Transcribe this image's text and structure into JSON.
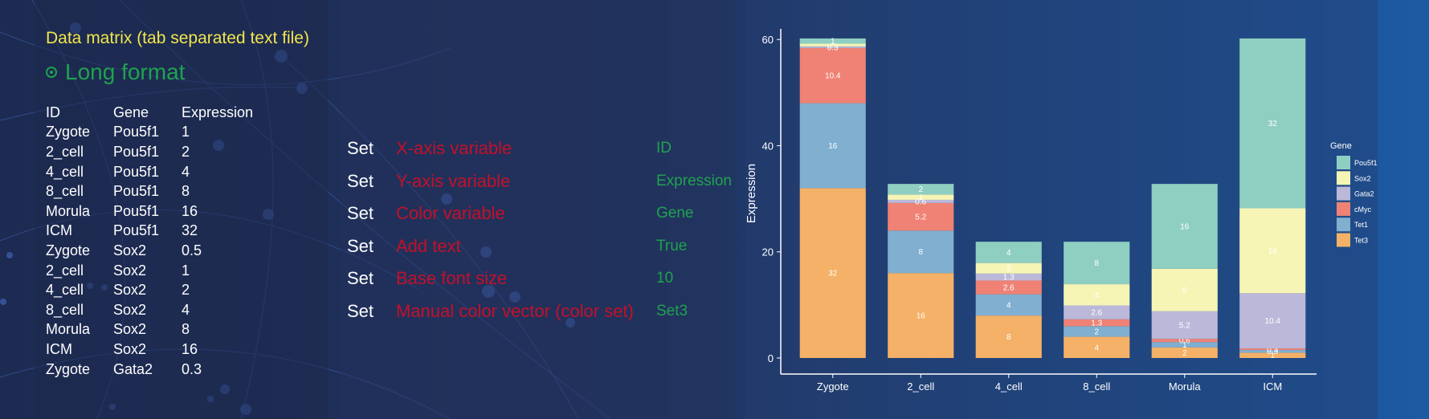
{
  "panel": {
    "title": "Data matrix (tab separated text file)",
    "format_option": "Long format",
    "table": {
      "headers": [
        "ID",
        "Gene",
        "Expression"
      ],
      "rows": [
        [
          "Zygote",
          "Pou5f1",
          "1"
        ],
        [
          "2_cell",
          "Pou5f1",
          "2"
        ],
        [
          "4_cell",
          "Pou5f1",
          "4"
        ],
        [
          "8_cell",
          "Pou5f1",
          "8"
        ],
        [
          "Morula",
          "Pou5f1",
          "16"
        ],
        [
          "ICM",
          "Pou5f1",
          "32"
        ],
        [
          "Zygote",
          "Sox2",
          "0.5"
        ],
        [
          "2_cell",
          "Sox2",
          "1"
        ],
        [
          "4_cell",
          "Sox2",
          "2"
        ],
        [
          "8_cell",
          "Sox2",
          "4"
        ],
        [
          "Morula",
          "Sox2",
          "8"
        ],
        [
          "ICM",
          "Sox2",
          "16"
        ],
        [
          "Zygote",
          "Gata2",
          "0.3"
        ]
      ]
    }
  },
  "settings": [
    {
      "keyword": "Set",
      "name": "X-axis variable",
      "value": "ID"
    },
    {
      "keyword": "Set",
      "name": "Y-axis variable",
      "value": "Expression"
    },
    {
      "keyword": "Set",
      "name": "Color variable",
      "value": "Gene"
    },
    {
      "keyword": "Set",
      "name": "Add text",
      "value": "True"
    },
    {
      "keyword": "Set",
      "name": "Base font size",
      "value": "10"
    },
    {
      "keyword": "Set",
      "name": "Manual color vector (color set)",
      "value": "Set3"
    }
  ],
  "chart_data": {
    "type": "bar",
    "stacked": true,
    "title": "",
    "xlabel": "",
    "ylabel": "Expression",
    "ylim": [
      0,
      62
    ],
    "yticks": [
      0,
      20,
      40,
      60
    ],
    "categories": [
      "Zygote",
      "2_cell",
      "4_cell",
      "8_cell",
      "Morula",
      "ICM"
    ],
    "legend_title": "Gene",
    "legend_position": "right",
    "series": [
      {
        "name": "Tet3",
        "color": "#f4b167",
        "values": [
          32,
          16,
          8,
          4,
          2,
          1
        ]
      },
      {
        "name": "Tet1",
        "color": "#80afd0",
        "values": [
          16,
          8,
          4,
          2,
          1,
          0.5
        ]
      },
      {
        "name": "cMyc",
        "color": "#ef8274",
        "values": [
          10.4,
          5.2,
          2.6,
          1.3,
          0.6,
          0.3
        ]
      },
      {
        "name": "Gata2",
        "color": "#bbb8d9",
        "values": [
          0.3,
          0.6,
          1.3,
          2.6,
          5.2,
          10.4
        ]
      },
      {
        "name": "Sox2",
        "color": "#f7f5b5",
        "values": [
          0.5,
          1,
          2,
          4,
          8,
          16
        ]
      },
      {
        "name": "Pou5f1",
        "color": "#8fcfc1",
        "values": [
          1,
          2,
          4,
          8,
          16,
          32
        ]
      }
    ],
    "legend_order": [
      "Pou5f1",
      "Sox2",
      "Gata2",
      "cMyc",
      "Tet1",
      "Tet3"
    ],
    "data_labels": [
      [
        "32",
        "16",
        "10.4",
        "0.3",
        "0.5",
        "1"
      ],
      [
        "16",
        "8",
        "5.2",
        "0.6",
        "1",
        "2"
      ],
      [
        "8",
        "4",
        "2.6",
        "1.3",
        "2",
        "4"
      ],
      [
        "4",
        "2",
        "1.3",
        "2.6",
        "4",
        "8"
      ],
      [
        "2",
        "1",
        "0.6",
        "5.2",
        "8",
        "16"
      ],
      [
        "1",
        "0.5",
        "0.3",
        "10.4",
        "16",
        "32"
      ]
    ]
  }
}
